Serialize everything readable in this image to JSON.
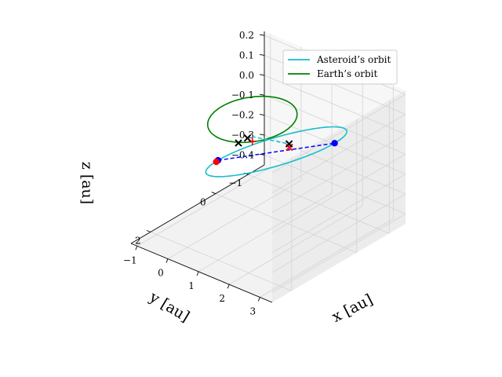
{
  "chart_data": {
    "type": "line",
    "projection": "3d",
    "grid": true,
    "legend_placement": "top-right",
    "xlabel": "x [au]",
    "ylabel": "y [au]",
    "zlabel": "z [au]",
    "xlim": [
      -1.2,
      3.4
    ],
    "ylim": [
      -1.5,
      2.6
    ],
    "zlim": [
      -0.45,
      0.22
    ],
    "xticks": [
      -1,
      0,
      1,
      2,
      3
    ],
    "xtick_labels": [
      "−1",
      "0",
      "1",
      "2",
      "3"
    ],
    "yticks": [
      -1,
      0,
      2
    ],
    "ytick_labels": [
      "−1",
      "0",
      "2"
    ],
    "zticks": [
      0.2,
      0.1,
      0.0,
      -0.1,
      -0.2,
      -0.3,
      -0.4
    ],
    "ztick_labels": [
      "0.2",
      "0.1",
      "0.0",
      "−0.1",
      "−0.2",
      "−0.3",
      "−0.4"
    ],
    "series": [
      {
        "name": "Asteroid’s orbit",
        "color": "#17becf",
        "kind": "ellipse",
        "center": [
          1.15,
          0.35,
          -0.055
        ],
        "semi_axes": [
          [
            1.9,
            0.0,
            0.165
          ],
          [
            0.0,
            1.22,
            0.0
          ]
        ]
      },
      {
        "name": "Earth’s orbit",
        "color": "#008000",
        "kind": "ellipse",
        "center": [
          0.0,
          0.0,
          0.0
        ],
        "semi_axes": [
          [
            1.0,
            0.0,
            0.0
          ],
          [
            0.0,
            1.0,
            0.0
          ]
        ]
      }
    ],
    "lines": [
      {
        "color": "#0000ff",
        "style": "dashed",
        "points": [
          [
            -0.75,
            0.35,
            -0.22
          ],
          [
            3.05,
            0.35,
            0.11
          ]
        ]
      },
      {
        "color": "#17becf",
        "style": "dashed",
        "points": [
          [
            0.35,
            0.35,
            -0.03
          ],
          [
            0.72,
            -0.45,
            -0.12
          ]
        ]
      }
    ],
    "markers": [
      {
        "type": "dot",
        "color": "#0000ff",
        "point": [
          3.05,
          0.35,
          0.11
        ]
      },
      {
        "type": "dot",
        "color": "#0000ff",
        "point": [
          -0.75,
          0.35,
          -0.22
        ]
      },
      {
        "type": "dot",
        "color": "#ff0000",
        "point": [
          -0.7,
          0.45,
          -0.215
        ]
      },
      {
        "type": "plus",
        "color": "#ff0000",
        "point": [
          0.0,
          0.0,
          -0.11
        ]
      },
      {
        "type": "x",
        "color": "#ff0000",
        "point": [
          0.74,
          -0.44,
          -0.135
        ]
      },
      {
        "type": "x",
        "color": "#000000",
        "point": [
          0.72,
          -0.45,
          -0.12
        ]
      },
      {
        "type": "x",
        "color": "#000000",
        "point": [
          0.5,
          0.9,
          0.0
        ]
      },
      {
        "type": "x",
        "color": "#000000",
        "point": [
          0.9,
          1.0,
          0.06
        ]
      }
    ]
  }
}
